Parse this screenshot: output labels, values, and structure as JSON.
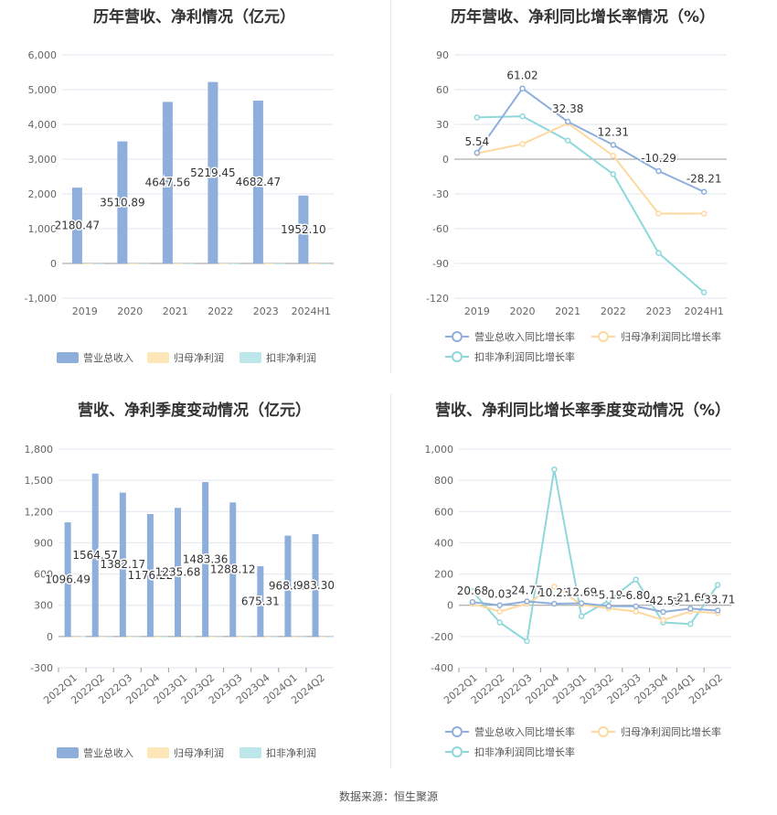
{
  "source_note": "数据来源：恒生聚源",
  "colors": {
    "revenue": "#8eaedc",
    "net_profit": "#fde6b8",
    "deducted_profit": "#bde7ea",
    "rev_growth": "#8eaedc",
    "np_growth": "#fdd9a0",
    "dp_growth": "#8ed8dc"
  },
  "chart_data": [
    {
      "type": "bar",
      "title": "历年营收、净利情况（亿元）",
      "categories": [
        "2019",
        "2020",
        "2021",
        "2022",
        "2023",
        "2024H1"
      ],
      "ylim": [
        -1000,
        6000
      ],
      "yticks": [
        -1000,
        0,
        1000,
        2000,
        3000,
        4000,
        5000,
        6000
      ],
      "ytick_labels": [
        "-1,000",
        "0",
        "1,000",
        "2,000",
        "3,000",
        "4,000",
        "5,000",
        "6,000"
      ],
      "grid": true,
      "legend_position": "bottom",
      "series": [
        {
          "name": "营业总收入",
          "values": [
            2180.47,
            3510.89,
            4647.56,
            5219.45,
            4682.47,
            1952.1
          ],
          "labels": [
            "2180.47",
            "3510.89",
            "4647.56",
            "5219.45",
            "4682.47",
            "1952.10"
          ]
        },
        {
          "name": "归母净利润",
          "values": [
            2,
            3,
            3,
            4,
            3,
            1
          ]
        },
        {
          "name": "扣非净利润",
          "values": [
            2,
            3,
            3,
            4,
            3,
            1
          ]
        }
      ]
    },
    {
      "type": "line",
      "title": "历年营收、净利同比增长率情况（%）",
      "categories": [
        "2019",
        "2020",
        "2021",
        "2022",
        "2023",
        "2024H1"
      ],
      "ylim": [
        -120,
        90
      ],
      "yticks": [
        -120,
        -90,
        -60,
        -30,
        0,
        30,
        60,
        90
      ],
      "ytick_labels": [
        "-120",
        "-90",
        "-60",
        "-30",
        "0",
        "30",
        "60",
        "90"
      ],
      "grid": true,
      "legend_position": "bottom",
      "series": [
        {
          "name": "营业总收入同比增长率",
          "values": [
            5.54,
            61.02,
            32.38,
            12.31,
            -10.29,
            -28.21
          ],
          "labels": [
            "5.54",
            "61.02",
            "32.38",
            "12.31",
            "-10.29",
            "-28.21"
          ]
        },
        {
          "name": "归母净利润同比增长率",
          "values": [
            5,
            13,
            31,
            3,
            -47,
            -47
          ]
        },
        {
          "name": "扣非净利润同比增长率",
          "values": [
            36,
            37,
            16,
            -13,
            -81,
            -115
          ]
        }
      ]
    },
    {
      "type": "bar",
      "title": "营收、净利季度变动情况（亿元）",
      "categories": [
        "2022Q1",
        "2022Q2",
        "2022Q3",
        "2022Q4",
        "2023Q1",
        "2023Q2",
        "2023Q3",
        "2023Q4",
        "2024Q1",
        "2024Q2"
      ],
      "ylim": [
        -300,
        1800
      ],
      "yticks": [
        -300,
        0,
        300,
        600,
        900,
        1200,
        1500,
        1800
      ],
      "ytick_labels": [
        "-300",
        "0",
        "300",
        "600",
        "900",
        "1,200",
        "1,500",
        "1,800"
      ],
      "grid": true,
      "legend_position": "bottom",
      "series": [
        {
          "name": "营业总收入",
          "values": [
            1096.49,
            1564.57,
            1382.17,
            1176.22,
            1235.68,
            1483.36,
            1288.12,
            675.31,
            968.8,
            983.3
          ],
          "labels": [
            "1096.49",
            "1564.57",
            "1382.17",
            "1176.22",
            "1235.68",
            "1483.36",
            "1288.12",
            "675.31",
            "968.80",
            "983.30"
          ]
        },
        {
          "name": "归母净利润",
          "values": [
            1,
            1,
            1,
            1,
            1,
            1,
            1,
            1,
            1,
            1
          ]
        },
        {
          "name": "扣非净利润",
          "values": [
            3,
            1,
            1,
            1,
            2,
            1,
            1,
            1,
            1,
            1
          ]
        }
      ]
    },
    {
      "type": "line",
      "title": "营收、净利同比增长率季度变动情况（%）",
      "categories": [
        "2022Q1",
        "2022Q2",
        "2022Q3",
        "2022Q4",
        "2023Q1",
        "2023Q2",
        "2023Q3",
        "2023Q4",
        "2024Q1",
        "2024Q2"
      ],
      "ylim": [
        -400,
        1000
      ],
      "yticks": [
        -400,
        -200,
        0,
        200,
        400,
        600,
        800,
        1000
      ],
      "ytick_labels": [
        "-400",
        "-200",
        "0",
        "200",
        "400",
        "600",
        "800",
        "1,000"
      ],
      "grid": true,
      "legend_position": "bottom",
      "series": [
        {
          "name": "营业总收入同比增长率",
          "values": [
            20.68,
            0.03,
            24.77,
            10.23,
            12.69,
            -5.19,
            -6.8,
            -42.59,
            -21.6,
            -33.71
          ],
          "labels": [
            "20.68",
            "0.03",
            "24.77",
            "10.23",
            "12.69",
            "-5.19",
            "-6.80",
            "-42.59",
            "-21.60",
            "-33.71"
          ]
        },
        {
          "name": "归母净利润同比增长率",
          "values": [
            10,
            -40,
            10,
            120,
            5,
            -20,
            -40,
            -95,
            -40,
            -50
          ]
        },
        {
          "name": "扣非净利润同比增长率",
          "values": [
            90,
            -110,
            -230,
            870,
            -70,
            30,
            165,
            -110,
            -120,
            130
          ]
        }
      ]
    }
  ]
}
